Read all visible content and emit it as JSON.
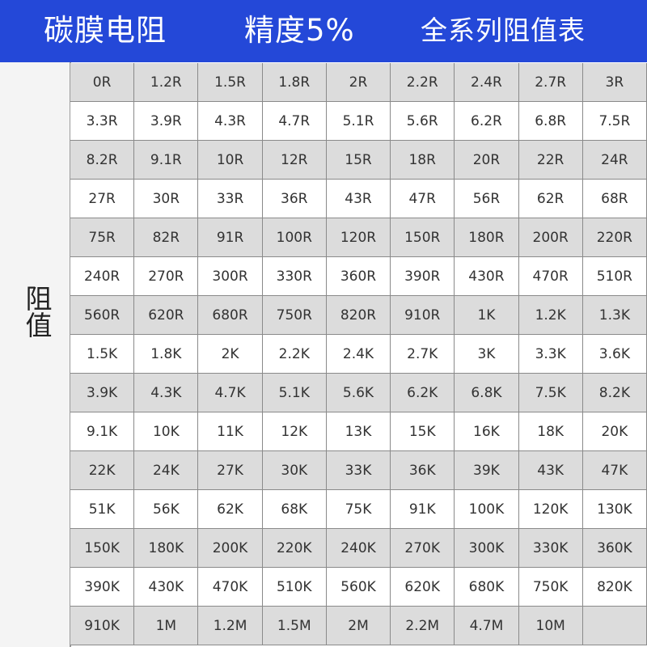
{
  "header": {
    "title": "碳膜电阻",
    "precision": "精度5%",
    "subtitle": "全系列阻值表",
    "background_color": "#2448d8"
  },
  "side_label": "阻值",
  "table": {
    "rows": [
      [
        "0R",
        "1.2R",
        "1.5R",
        "1.8R",
        "2R",
        "2.2R",
        "2.4R",
        "2.7R",
        "3R"
      ],
      [
        "3.3R",
        "3.9R",
        "4.3R",
        "4.7R",
        "5.1R",
        "5.6R",
        "6.2R",
        "6.8R",
        "7.5R"
      ],
      [
        "8.2R",
        "9.1R",
        "10R",
        "12R",
        "15R",
        "18R",
        "20R",
        "22R",
        "24R"
      ],
      [
        "27R",
        "30R",
        "33R",
        "36R",
        "43R",
        "47R",
        "56R",
        "62R",
        "68R"
      ],
      [
        "75R",
        "82R",
        "91R",
        "100R",
        "120R",
        "150R",
        "180R",
        "200R",
        "220R"
      ],
      [
        "240R",
        "270R",
        "300R",
        "330R",
        "360R",
        "390R",
        "430R",
        "470R",
        "510R"
      ],
      [
        "560R",
        "620R",
        "680R",
        "750R",
        "820R",
        "910R",
        "1K",
        "1.2K",
        "1.3K"
      ],
      [
        "1.5K",
        "1.8K",
        "2K",
        "2.2K",
        "2.4K",
        "2.7K",
        "3K",
        "3.3K",
        "3.6K"
      ],
      [
        "3.9K",
        "4.3K",
        "4.7K",
        "5.1K",
        "5.6K",
        "6.2K",
        "6.8K",
        "7.5K",
        "8.2K"
      ],
      [
        "9.1K",
        "10K",
        "11K",
        "12K",
        "13K",
        "15K",
        "16K",
        "18K",
        "20K"
      ],
      [
        "22K",
        "24K",
        "27K",
        "30K",
        "33K",
        "36K",
        "39K",
        "43K",
        "47K"
      ],
      [
        "51K",
        "56K",
        "62K",
        "68K",
        "75K",
        "91K",
        "100K",
        "120K",
        "130K"
      ],
      [
        "150K",
        "180K",
        "200K",
        "220K",
        "240K",
        "270K",
        "300K",
        "330K",
        "360K"
      ],
      [
        "390K",
        "430K",
        "470K",
        "510K",
        "560K",
        "620K",
        "680K",
        "750K",
        "820K"
      ],
      [
        "910K",
        "1M",
        "1.2M",
        "1.5M",
        "2M",
        "2.2M",
        "4.7M",
        "10M",
        ""
      ]
    ]
  }
}
